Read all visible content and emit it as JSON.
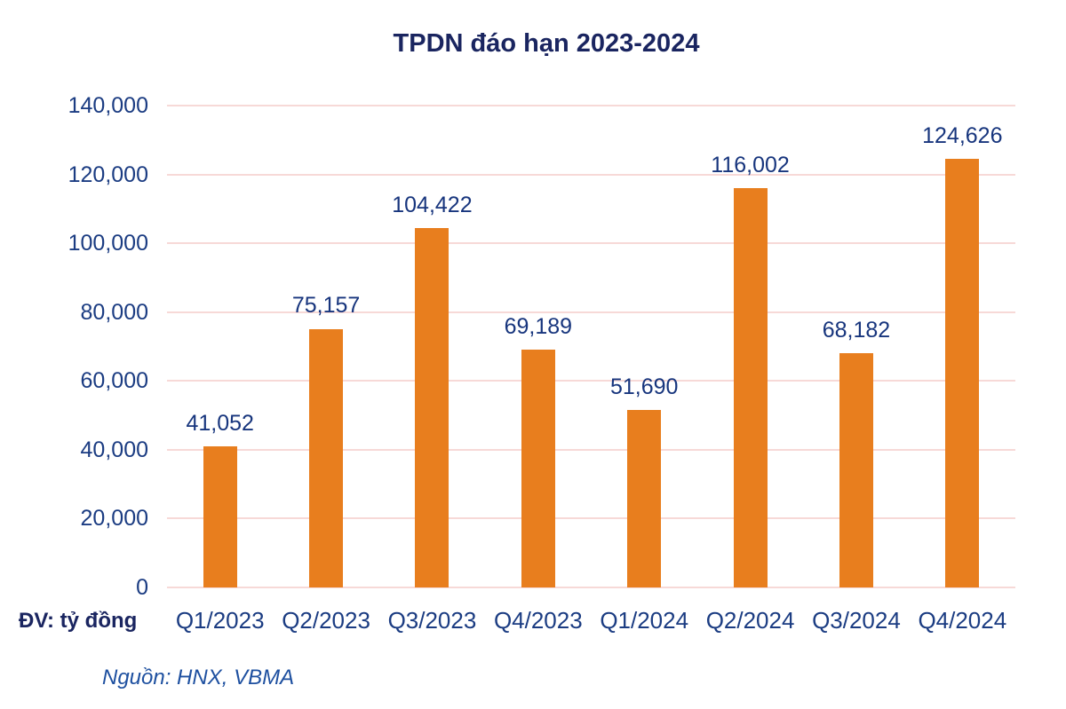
{
  "title": "TPDN đáo hạn 2023-2024",
  "unit_label": "ĐV: tỷ đồng",
  "source_note": "Nguồn: HNX, VBMA",
  "colors": {
    "bar": "#E87E1E",
    "gridline": "#F7D9D7",
    "title_text": "#1A2560",
    "axis_text": "#1B3C82",
    "value_text": "#17357D",
    "source_text": "#1E50A0",
    "background": "#FFFFFF"
  },
  "chart_data": {
    "type": "bar",
    "title": "TPDN đáo hạn 2023-2024",
    "categories": [
      "Q1/2023",
      "Q2/2023",
      "Q3/2023",
      "Q4/2023",
      "Q1/2024",
      "Q2/2024",
      "Q3/2024",
      "Q4/2024"
    ],
    "values": [
      41052,
      75157,
      104422,
      69189,
      51690,
      116002,
      68182,
      124626
    ],
    "value_labels": [
      "41,052",
      "75,157",
      "104,422",
      "69,189",
      "51,690",
      "116,002",
      "68,182",
      "124,626"
    ],
    "xlabel": "",
    "ylabel": "ĐV: tỷ đồng",
    "ylim": [
      0,
      140000
    ],
    "ytick_step": 20000,
    "ytick_labels": [
      "0",
      "20,000",
      "40,000",
      "60,000",
      "80,000",
      "100,000",
      "120,000",
      "140,000"
    ],
    "grid": true,
    "legend": "none",
    "unit": "tỷ đồng",
    "source": "HNX, VBMA"
  }
}
